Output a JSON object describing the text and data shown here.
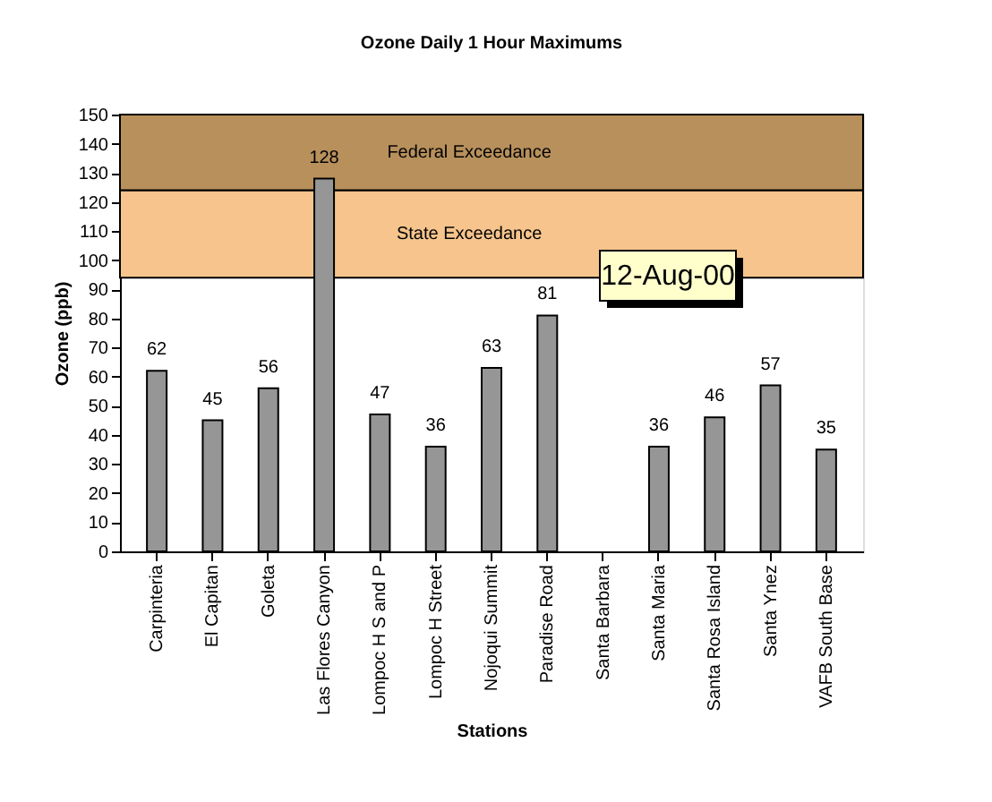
{
  "chart_data": {
    "type": "bar",
    "title": "Ozone Daily 1 Hour Maximums",
    "xlabel": "Stations",
    "ylabel": "Ozone (ppb)",
    "categories": [
      "Carpinteria",
      "El Capitan",
      "Goleta",
      "Las Flores Canyon",
      "Lompoc H S and P",
      "Lompoc H Street",
      "Nojoqui Summit",
      "Paradise Road",
      "Santa Barbara",
      "Santa Maria",
      "Santa Rosa Island",
      "Santa Ynez",
      "VAFB South Base"
    ],
    "values": [
      62,
      45,
      56,
      128,
      47,
      36,
      63,
      81,
      null,
      36,
      46,
      57,
      35
    ],
    "color": "#969696",
    "data_labels": true,
    "ylim": [
      0,
      150
    ],
    "yticks": [
      0,
      10,
      20,
      30,
      40,
      50,
      60,
      70,
      80,
      90,
      100,
      110,
      120,
      130,
      140,
      150
    ],
    "grid": false,
    "bands": [
      {
        "axis": "y",
        "from": 94,
        "to": 124,
        "label": "State Exceedance",
        "color": "#f6c48c"
      },
      {
        "axis": "y",
        "from": 124,
        "to": 150,
        "label": "Federal Exceedance",
        "color": "#b8905c"
      }
    ],
    "annotations": [
      "12-Aug-00"
    ]
  }
}
